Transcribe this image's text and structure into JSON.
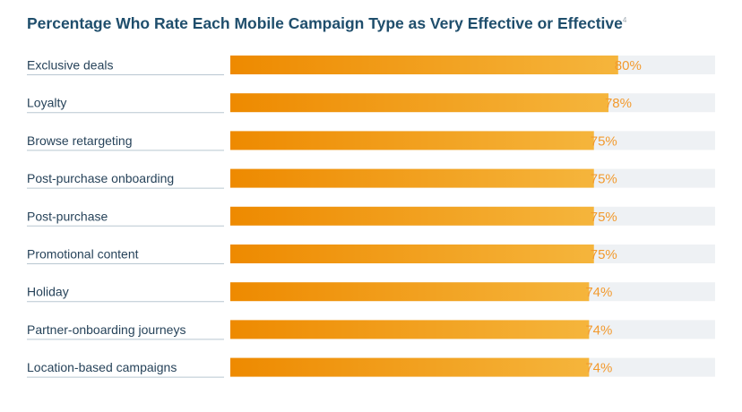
{
  "chart_data": {
    "type": "bar",
    "orientation": "horizontal",
    "title": "Percentage Who Rate Each Mobile Campaign Type as Very Effective or Effective",
    "title_footnote": "4",
    "categories": [
      "Exclusive deals",
      "Loyalty",
      "Browse retargeting",
      "Post-purchase onboarding",
      "Post-purchase",
      "Promotional content",
      "Holiday",
      "Partner-onboarding journeys",
      "Location-based campaigns"
    ],
    "values": [
      80,
      78,
      75,
      75,
      75,
      75,
      74,
      74,
      74
    ],
    "value_labels": [
      "80%",
      "78%",
      "75%",
      "75%",
      "75%",
      "75%",
      "74%",
      "74%",
      "74%"
    ],
    "unit": "%",
    "xlim": [
      0,
      100
    ],
    "grid": false,
    "legend": "none",
    "colors": {
      "bar_start": "#ee8a00",
      "bar_end": "#f5b53c",
      "track": "#eef1f4",
      "value_text": "#f29a2e",
      "category_text": "#27435a",
      "title_text": "#1f4e6c",
      "underline": "#b9c7d1"
    }
  }
}
